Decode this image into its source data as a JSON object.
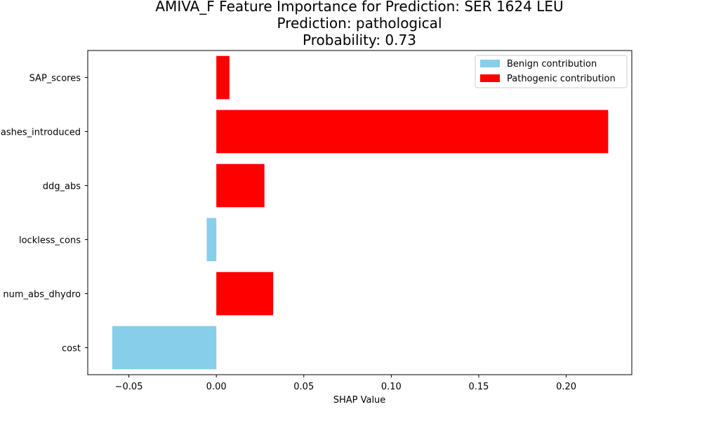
{
  "chart_data": {
    "type": "bar",
    "orientation": "horizontal",
    "title_lines": [
      "AMIVA_F Feature Importance for Prediction: SER 1624 LEU",
      "Prediction: pathological",
      "Probability: 0.73"
    ],
    "xlabel": "SHAP Value",
    "ylabel": "",
    "categories": [
      "SAP_scores",
      "clashes_introduced",
      "ddg_abs",
      "lockless_cons",
      "minimum_abs_dhydro",
      "cost"
    ],
    "category_labels_visible": [
      "SAP_scores",
      "ashes_introduced",
      "ddg_abs",
      "lockless_cons",
      "num_abs_dhydro",
      "cost"
    ],
    "values": [
      0.0075,
      0.224,
      0.0275,
      -0.0055,
      0.0325,
      -0.0595
    ],
    "xlim": [
      -0.0735,
      0.2375
    ],
    "xticks": [
      -0.05,
      0.0,
      0.05,
      0.1,
      0.15,
      0.2
    ],
    "xtick_labels": [
      "−0.05",
      "0.00",
      "0.05",
      "0.10",
      "0.15",
      "0.20"
    ],
    "grid": false,
    "legend_position": "top-right",
    "legend": [
      {
        "label": "Benign contribution",
        "color": "#87ceeb"
      },
      {
        "label": "Pathogenic contribution",
        "color": "#ff0000"
      }
    ],
    "colors": {
      "benign": "#87ceeb",
      "pathogenic": "#ff0000"
    }
  }
}
